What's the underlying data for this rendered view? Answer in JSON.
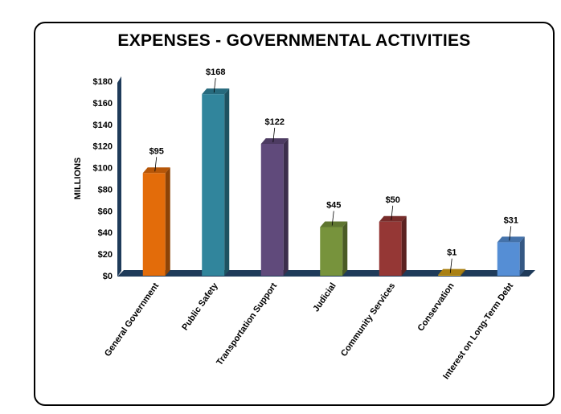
{
  "chart_data": {
    "type": "bar",
    "title": "EXPENSES - GOVERNMENTAL ACTIVITIES",
    "ylabel": "MILLIONS",
    "xlabel": "",
    "ylim": [
      0,
      180
    ],
    "yticks": [
      0,
      20,
      40,
      60,
      80,
      100,
      120,
      140,
      160,
      180
    ],
    "ytick_labels": [
      "$0",
      "$20",
      "$40",
      "$60",
      "$80",
      "$100",
      "$120",
      "$140",
      "$160",
      "$180"
    ],
    "categories": [
      "General Government",
      "Public Safety",
      "Transportation Support",
      "Judicial",
      "Community Services",
      "Conservation",
      "Interest on Long-Term Debt"
    ],
    "values": [
      95,
      168,
      122,
      45,
      50,
      1,
      31
    ],
    "data_labels": [
      "$95",
      "$168",
      "$122",
      "$45",
      "$50",
      "$1",
      "$31"
    ],
    "colors": [
      "#E36C0A",
      "#31859C",
      "#604A7B",
      "#77933C",
      "#953735",
      "#D4A017",
      "#558ED5"
    ],
    "floor_color": "#1F3B5A",
    "grid": false,
    "legend": "none"
  }
}
